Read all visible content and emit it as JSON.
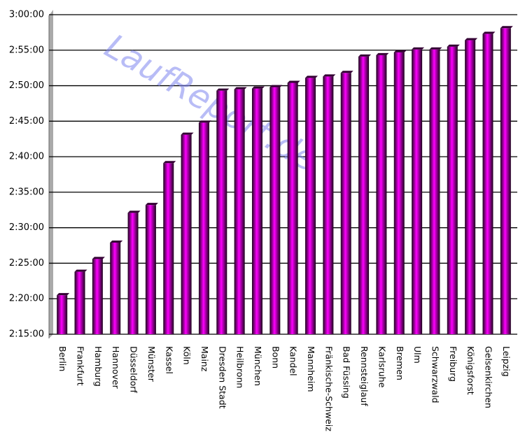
{
  "chart_data": {
    "type": "bar",
    "watermark": "LaufReport.de",
    "categories": [
      "Berlin",
      "Frankfurt",
      "Hamburg",
      "Hannover",
      "Düsseldorf",
      "Münster",
      "Kassel",
      "Köln",
      "Mainz",
      "Dresden Stadt",
      "Heilbronn",
      "München",
      "Bonn",
      "Kandel",
      "Mannheim",
      "Fränkische-Schweiz",
      "Bad Füssing",
      "Rennsteiglauf",
      "Karlsruhe",
      "Bremen",
      "Ulm",
      "Schwarzwald",
      "Freiburg",
      "Königsforst",
      "Gelsenkirchen",
      "Leipzig"
    ],
    "values": [
      140.5,
      143.8,
      145.6,
      147.9,
      152.1,
      153.2,
      159.1,
      163.1,
      164.8,
      169.3,
      169.5,
      169.6,
      169.8,
      170.4,
      171.1,
      171.3,
      171.8,
      174.1,
      174.3,
      174.7,
      175.1,
      175.1,
      175.5,
      176.4,
      177.3,
      178.1
    ],
    "color": "#ff00ff",
    "ylim": [
      135,
      180
    ],
    "yticks": [
      {
        "value": 135,
        "label": "2:15:00"
      },
      {
        "value": 140,
        "label": "2:20:00"
      },
      {
        "value": 145,
        "label": "2:25:00"
      },
      {
        "value": 150,
        "label": "2:30:00"
      },
      {
        "value": 155,
        "label": "2:35:00"
      },
      {
        "value": 160,
        "label": "2:40:00"
      },
      {
        "value": 165,
        "label": "2:45:00"
      },
      {
        "value": 170,
        "label": "2:50:00"
      },
      {
        "value": 175,
        "label": "2:55:00"
      },
      {
        "value": 180,
        "label": "3:00:00"
      }
    ],
    "grid": true
  }
}
